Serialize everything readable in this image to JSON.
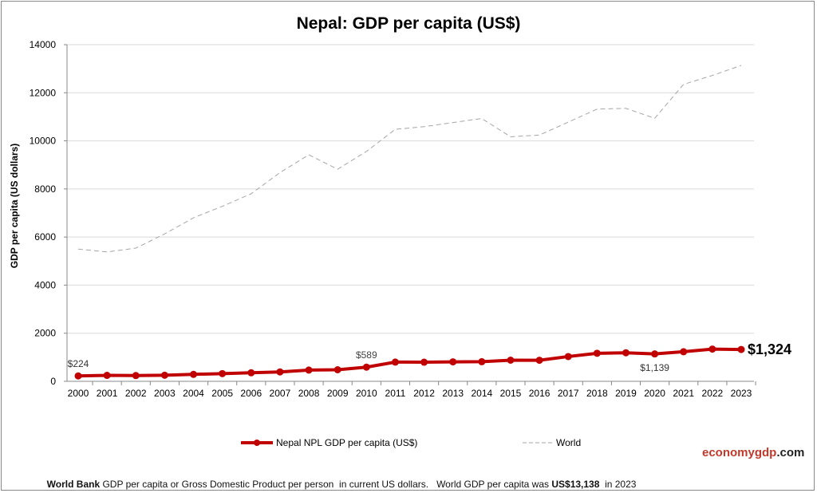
{
  "chart_data": {
    "type": "line",
    "title": "Nepal: GDP per capita (US$)",
    "ylabel": "GDP per capita (US dollars)",
    "xlabel": "",
    "ylim": [
      0,
      14000
    ],
    "yticks": [
      0,
      2000,
      4000,
      6000,
      8000,
      10000,
      12000,
      14000
    ],
    "grid": true,
    "legend_placement": "bottom",
    "x": [
      "2000",
      "2001",
      "2002",
      "2003",
      "2004",
      "2005",
      "2006",
      "2007",
      "2008",
      "2009",
      "2010",
      "2011",
      "2012",
      "2013",
      "2014",
      "2015",
      "2016",
      "2017",
      "2018",
      "2019",
      "2020",
      "2021",
      "2022",
      "2023"
    ],
    "series": [
      {
        "name": "Nepal NPL GDP per capita (US$)",
        "color": "#c00000",
        "style": "solid-markers",
        "values": [
          224,
          247,
          240,
          253,
          290,
          321,
          356,
          391,
          468,
          481,
          589,
          800,
          796,
          809,
          816,
          879,
          877,
          1030,
          1166,
          1186,
          1139,
          1230,
          1340,
          1324
        ]
      },
      {
        "name": "World",
        "color": "#a6a6a6",
        "style": "dashed",
        "values": [
          5500,
          5380,
          5540,
          6130,
          6800,
          7280,
          7800,
          8680,
          9420,
          8820,
          9560,
          10480,
          10590,
          10760,
          10930,
          10170,
          10240,
          10780,
          11320,
          11350,
          10940,
          12350,
          12720,
          13138
        ]
      }
    ],
    "annotations": [
      {
        "x": "2000",
        "text": "$224"
      },
      {
        "x": "2010",
        "text": "$589"
      },
      {
        "x": "2020",
        "text": "$1,139"
      },
      {
        "x": "2023",
        "text": "$1,324"
      }
    ]
  },
  "brand": {
    "part1": "economygdp",
    "part2": ".com",
    "color": "#c0392b"
  },
  "footer": {
    "bold1": "World Bank",
    "text1": " GDP per capita or Gross Domestic Product per person  in current US dollars.   World GDP per capita was ",
    "bold2": "US$13,138",
    "text2": "  in 2023"
  }
}
